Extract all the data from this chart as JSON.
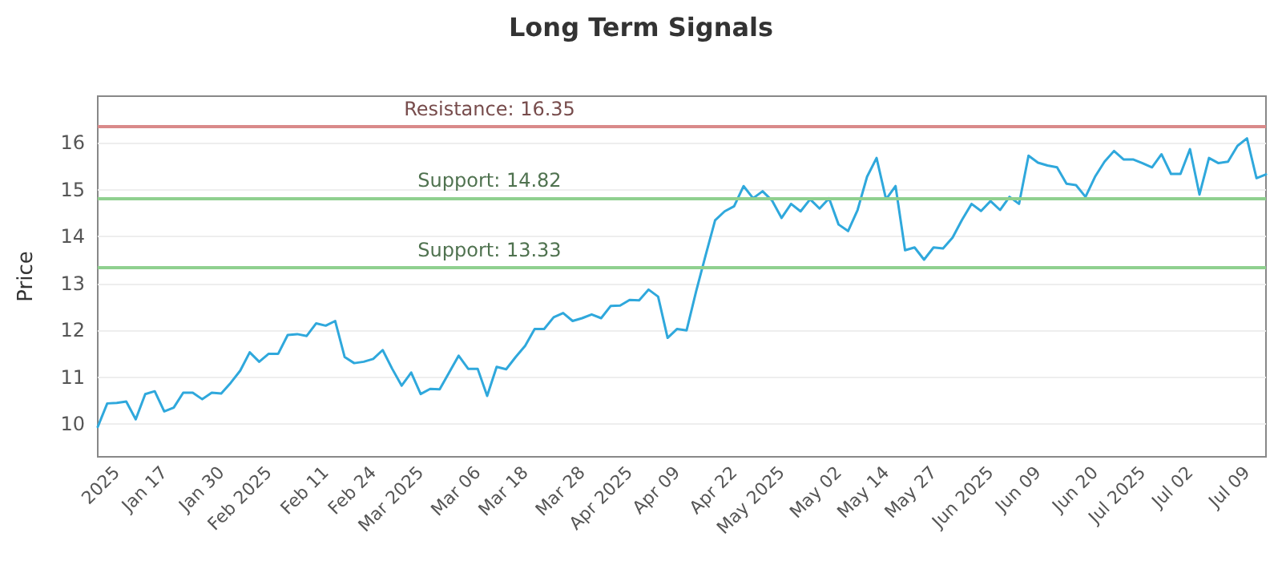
{
  "chart_data": {
    "type": "line",
    "title": "Long Term Signals",
    "ylabel": "Price",
    "categories": [
      null,
      null,
      "2025",
      null,
      null,
      null,
      null,
      "Jan 17",
      null,
      null,
      null,
      null,
      null,
      "Jan 30",
      null,
      null,
      null,
      null,
      "Feb 2025",
      null,
      null,
      null,
      null,
      null,
      "Feb 11",
      null,
      null,
      null,
      null,
      "Feb 24",
      null,
      null,
      null,
      null,
      "Mar 2025",
      null,
      null,
      null,
      null,
      null,
      "Mar 06",
      null,
      null,
      null,
      null,
      "Mar 18",
      null,
      null,
      null,
      null,
      null,
      "Mar 28",
      null,
      null,
      null,
      null,
      "Apr 2025",
      null,
      null,
      null,
      null,
      "Apr 09",
      null,
      null,
      null,
      null,
      null,
      "Apr 22",
      null,
      null,
      null,
      null,
      "May 2025",
      null,
      null,
      null,
      null,
      null,
      "May 02",
      null,
      null,
      null,
      null,
      "May 14",
      null,
      null,
      null,
      null,
      "May 27",
      null,
      null,
      null,
      null,
      null,
      "Jun 2025",
      null,
      null,
      null,
      null,
      "Jun 09",
      null,
      null,
      null,
      null,
      null,
      "Jun 20",
      null,
      null,
      null,
      null,
      "Jul 2025",
      null,
      null,
      null,
      null,
      "Jul 02",
      null,
      null,
      null,
      null,
      null,
      "Jul 09",
      null,
      null
    ],
    "series": [
      {
        "color": "#2fa8dc",
        "values": [
          9.94,
          10.44,
          10.45,
          10.48,
          10.1,
          10.64,
          10.7,
          10.27,
          10.35,
          10.67,
          10.67,
          10.53,
          10.67,
          10.65,
          10.88,
          11.14,
          11.53,
          11.33,
          11.5,
          11.5,
          11.9,
          11.92,
          11.88,
          12.15,
          12.1,
          12.2,
          11.43,
          11.3,
          11.33,
          11.39,
          11.58,
          11.18,
          10.82,
          11.1,
          10.64,
          10.75,
          10.74,
          11.1,
          11.46,
          11.18,
          11.18,
          10.6,
          11.22,
          11.17,
          11.43,
          11.67,
          12.03,
          12.03,
          12.28,
          12.37,
          12.2,
          12.26,
          12.34,
          12.26,
          12.52,
          12.53,
          12.65,
          12.64,
          12.87,
          12.72,
          11.84,
          12.03,
          12.0,
          12.83,
          13.6,
          14.35,
          14.54,
          14.65,
          15.08,
          14.82,
          14.97,
          14.77,
          14.4,
          14.7,
          14.54,
          14.8,
          14.6,
          14.82,
          14.26,
          14.12,
          14.57,
          15.28,
          15.68,
          14.8,
          15.08,
          13.71,
          13.77,
          13.51,
          13.77,
          13.75,
          13.98,
          14.36,
          14.7,
          14.55,
          14.76,
          14.57,
          14.85,
          14.7,
          15.73,
          15.58,
          15.52,
          15.48,
          15.13,
          15.1,
          14.85,
          15.28,
          15.6,
          15.83,
          15.65,
          15.65,
          15.57,
          15.48,
          15.76,
          15.34,
          15.34,
          15.87,
          14.9,
          15.68,
          15.57,
          15.6,
          15.94,
          16.1,
          15.25,
          15.33
        ]
      }
    ],
    "ylim": [
      9.3,
      17
    ],
    "yticks": [
      10,
      11,
      12,
      13,
      14,
      15,
      16
    ],
    "grid": "y",
    "marker": "none",
    "line_style": "solid",
    "ref_lines": [
      {
        "axis": "y",
        "value": 16.35,
        "label": "Resistance: 16.35",
        "color": "#d98a8a"
      },
      {
        "axis": "y",
        "value": 14.82,
        "label": "Support: 14.82",
        "color": "#8fd08f"
      },
      {
        "axis": "y",
        "value": 13.33,
        "label": "Support: 13.33",
        "color": "#8fd08f"
      }
    ]
  }
}
